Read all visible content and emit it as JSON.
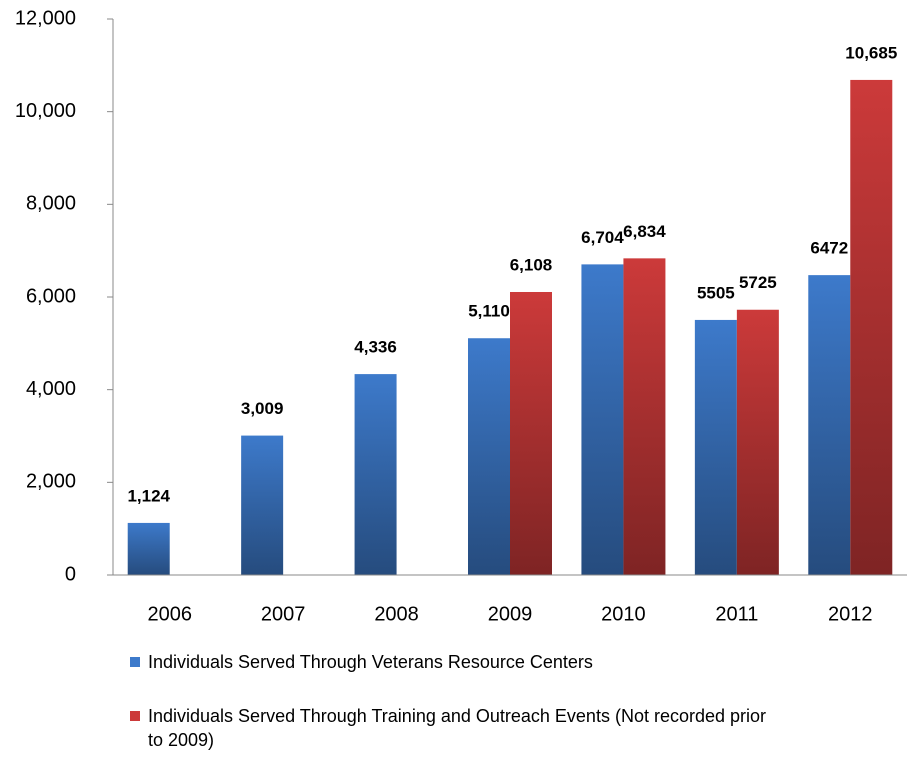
{
  "chart_data": {
    "type": "bar",
    "categories": [
      "2006",
      "2007",
      "2008",
      "2009",
      "2010",
      "2011",
      "2012"
    ],
    "series": [
      {
        "name": "Individuals Served Through Veterans Resource Centers",
        "color": "#3d7acb",
        "values": [
          1124,
          3009,
          4336,
          5110,
          6704,
          5505,
          6472
        ],
        "value_labels": [
          "1,124",
          "3,009",
          "4,336",
          "5,110",
          "6,704",
          "5505",
          "6472"
        ]
      },
      {
        "name": "Individuals Served Through Training and Outreach Events (Not recorded prior to 2009)",
        "color": "#cc3a3a",
        "values": [
          null,
          null,
          null,
          6108,
          6834,
          5725,
          10685
        ],
        "value_labels": [
          null,
          null,
          null,
          "6,108",
          "6,834",
          "5725",
          "10,685"
        ]
      }
    ],
    "ylim": [
      0,
      12000
    ],
    "yticks": [
      0,
      {
        "value": 2000,
        "label": "2,000"
      },
      {
        "value": 4000,
        "label": "4,000"
      },
      {
        "value": 6000,
        "label": "6,000"
      },
      {
        "value": 8000,
        "label": "8,000"
      },
      {
        "value": 10000,
        "label": "10,000"
      },
      {
        "value": 12000,
        "label": "12,000"
      }
    ],
    "legend": "bottom"
  }
}
